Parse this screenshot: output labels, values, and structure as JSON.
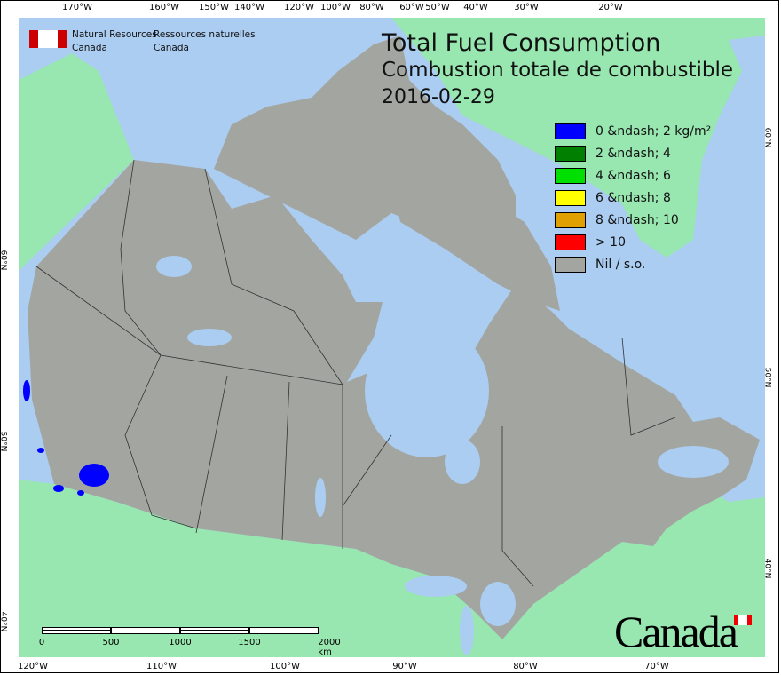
{
  "title": {
    "en": "Total Fuel Consumption",
    "fr": "Combustion totale de combustible",
    "date": "2016-02-29"
  },
  "agency": {
    "en_line1": "Natural Resources",
    "en_line2": "Canada",
    "fr_line1": "Ressources naturelles",
    "fr_line2": "Canada"
  },
  "wordmark": "Canada",
  "legend": [
    {
      "label": "0 &ndash; 2 kg/m²",
      "color": "#0000ff"
    },
    {
      "label": "2 &ndash; 4",
      "color": "#007f00"
    },
    {
      "label": "4 &ndash; 6",
      "color": "#00e000"
    },
    {
      "label": "6 &ndash; 8",
      "color": "#ffff00"
    },
    {
      "label": "8 &ndash; 10",
      "color": "#e0a000"
    },
    {
      "label": "> 10",
      "color": "#ff0000"
    },
    {
      "label": "Nil / s.o.",
      "color": "#a3a6a0"
    }
  ],
  "axes": {
    "top": [
      "170°W",
      "160°W",
      "150°W",
      "140°W",
      "120°W",
      "100°W",
      "80°W",
      "60°W",
      "50°W",
      "40°W",
      "30°W",
      "20°W"
    ],
    "bottom": [
      "120°W",
      "110°W",
      "100°W",
      "90°W",
      "80°W",
      "70°W"
    ],
    "left": [
      "60°N",
      "50°N",
      "40°N"
    ],
    "right": [
      "60°N",
      "50°N",
      "40°N"
    ]
  },
  "scale_bar": {
    "labels": [
      "0",
      "500",
      "1000",
      "1500",
      "2000 km"
    ]
  },
  "colors": {
    "water": "#abcdf2",
    "foreign_land": "#98e6b0",
    "canada_land": "#a3a6a0",
    "fire": "#0000ff"
  }
}
